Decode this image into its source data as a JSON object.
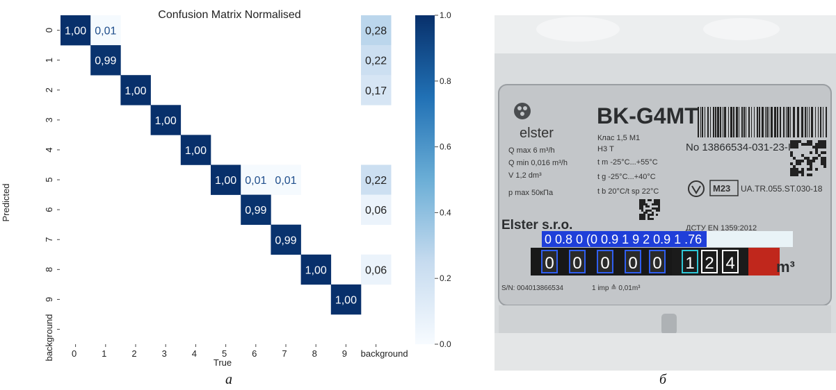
{
  "captions": {
    "left": "а",
    "right": "б"
  },
  "chart_data": {
    "type": "heatmap",
    "title": "Confusion Matrix Normalised",
    "xlabel": "True",
    "ylabel": "Predicted",
    "x_labels": [
      "0",
      "1",
      "2",
      "3",
      "4",
      "5",
      "6",
      "7",
      "8",
      "9",
      "background"
    ],
    "y_labels": [
      "0",
      "1",
      "2",
      "3",
      "4",
      "5",
      "6",
      "7",
      "8",
      "9",
      "background"
    ],
    "cells": [
      {
        "row": 0,
        "col": 0,
        "value": 1.0,
        "label": "1,00"
      },
      {
        "row": 0,
        "col": 1,
        "value": 0.01,
        "label": "0,01"
      },
      {
        "row": 0,
        "col": 10,
        "value": 0.28,
        "label": "0,28"
      },
      {
        "row": 1,
        "col": 1,
        "value": 0.99,
        "label": "0,99"
      },
      {
        "row": 1,
        "col": 10,
        "value": 0.22,
        "label": "0,22"
      },
      {
        "row": 2,
        "col": 2,
        "value": 1.0,
        "label": "1,00"
      },
      {
        "row": 2,
        "col": 10,
        "value": 0.17,
        "label": "0,17"
      },
      {
        "row": 3,
        "col": 3,
        "value": 1.0,
        "label": "1,00"
      },
      {
        "row": 4,
        "col": 4,
        "value": 1.0,
        "label": "1,00"
      },
      {
        "row": 5,
        "col": 5,
        "value": 1.0,
        "label": "1,00"
      },
      {
        "row": 5,
        "col": 6,
        "value": 0.01,
        "label": "0,01"
      },
      {
        "row": 5,
        "col": 7,
        "value": 0.01,
        "label": "0,01"
      },
      {
        "row": 5,
        "col": 10,
        "value": 0.22,
        "label": "0,22"
      },
      {
        "row": 6,
        "col": 6,
        "value": 0.99,
        "label": "0,99"
      },
      {
        "row": 6,
        "col": 10,
        "value": 0.06,
        "label": "0,06"
      },
      {
        "row": 7,
        "col": 7,
        "value": 0.99,
        "label": "0,99"
      },
      {
        "row": 8,
        "col": 8,
        "value": 1.0,
        "label": "1,00"
      },
      {
        "row": 8,
        "col": 10,
        "value": 0.06,
        "label": "0,06"
      },
      {
        "row": 9,
        "col": 9,
        "value": 1.0,
        "label": "1,00"
      }
    ],
    "colorbar": {
      "range": [
        0.0,
        1.0
      ],
      "ticks": [
        "0.0",
        "0.2",
        "0.4",
        "0.6",
        "0.8",
        "1.0"
      ]
    },
    "colors": {
      "low": "#f7fbff",
      "high": "#08306b"
    }
  },
  "meter_photo": {
    "brand": "elster",
    "model": "BK-G4MT",
    "klass": "Клас 1,5  М1",
    "h3": "Н3     Т",
    "serial_no": "No 13866534-031-23-I",
    "specs_left": [
      "Q max   6 m³/h",
      "Q min   0,016 m³/h",
      "V  1,2 dm³",
      "p max   50кПа"
    ],
    "specs_right": [
      "t m  -25°C...+55°C",
      "t g  -25°C...+40°C",
      "t b  20°C/t sp  22°C"
    ],
    "company": "Elster s.r.o.",
    "m23": "M23",
    "ua_code": "UA.TR.055.ST.030-18",
    "dstu": "ДСТУ EN 1359:2012",
    "sn": "S/N: 004013866534",
    "imp": "1 imp ≙ 0,01m³",
    "unit": "m³",
    "detection_label": "0 0.8 0  (0  0.9 1 9 2  0.9 1 .76",
    "digits": [
      "0",
      "0",
      "0",
      "0",
      "0",
      "1",
      "2",
      "4"
    ]
  }
}
